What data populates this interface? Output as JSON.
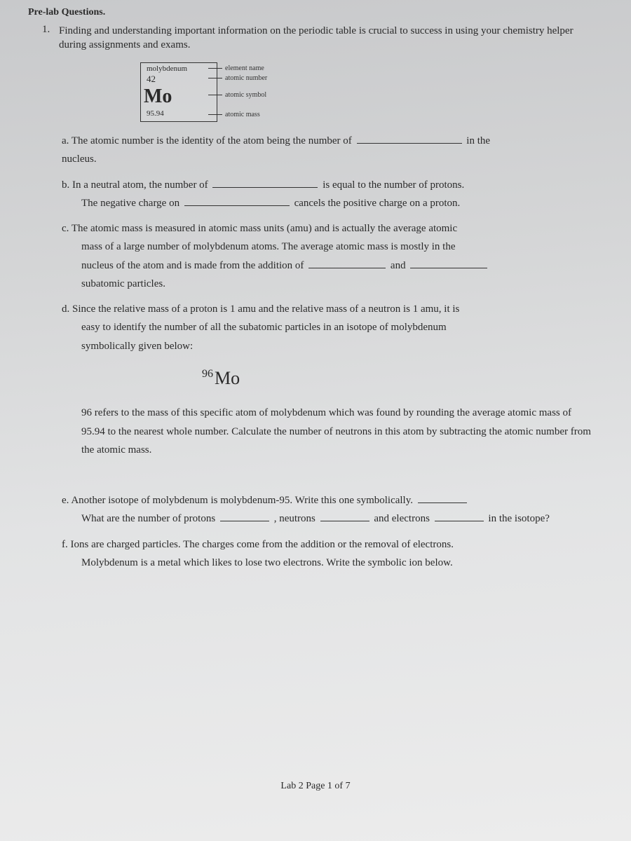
{
  "header": "Pre-lab Questions.",
  "q1": {
    "number": "1.",
    "text": "Finding and understanding important information on the periodic table is crucial to success in using your chemistry helper during assignments and exams."
  },
  "element": {
    "name": "molybdenum",
    "atomic_number": "42",
    "symbol": "Mo",
    "mass": "95.94",
    "labels": {
      "name": "element name",
      "number": "atomic number",
      "symbol": "atomic symbol",
      "mass": "atomic mass"
    }
  },
  "qa": {
    "pre": "a. The atomic number is the identity of the atom being the number of",
    "post1": "in the",
    "post2": "nucleus."
  },
  "qb": {
    "line1a": "b. In a neutral atom, the number of",
    "line1b": "is equal to the number of protons.",
    "line2a": "The negative charge on",
    "line2b": "cancels the positive charge on a proton."
  },
  "qc": {
    "l1": "c. The atomic mass is measured in atomic mass units (amu) and is actually the average atomic",
    "l2": "mass of a large number of molybdenum atoms.  The average atomic mass is mostly in the",
    "l3a": "nucleus of the atom and is made from the addition of",
    "l3b": "and",
    "l4": "subatomic particles."
  },
  "qd": {
    "l1": "d. Since the relative mass of a proton is 1 amu and the relative mass of a neutron is 1 amu, it is",
    "l2": "easy to identify the number of all the subatomic particles in an isotope of molybdenum",
    "l3": "symbolically given below:",
    "isotope_sup": "96",
    "isotope_sym": "Mo",
    "p1": "96 refers to the mass of this specific atom of molybdenum which was found by rounding the average atomic mass of 95.94 to the nearest whole number.  Calculate the number of neutrons in this atom by subtracting the atomic number from the atomic mass."
  },
  "qe": {
    "l1": "e. Another isotope of molybdenum is molybdenum-95.  Write this one symbolically.",
    "l2a": "What are the number of protons",
    "l2b": ", neutrons",
    "l2c": "and electrons",
    "l2d": "in the isotope?"
  },
  "qf": {
    "l1": "f. Ions are charged particles.  The charges come from the addition or the removal of electrons.",
    "l2": "Molybdenum is a metal which likes to lose two electrons.  Write the symbolic ion below."
  },
  "footer": "Lab 2    Page 1 of 7"
}
